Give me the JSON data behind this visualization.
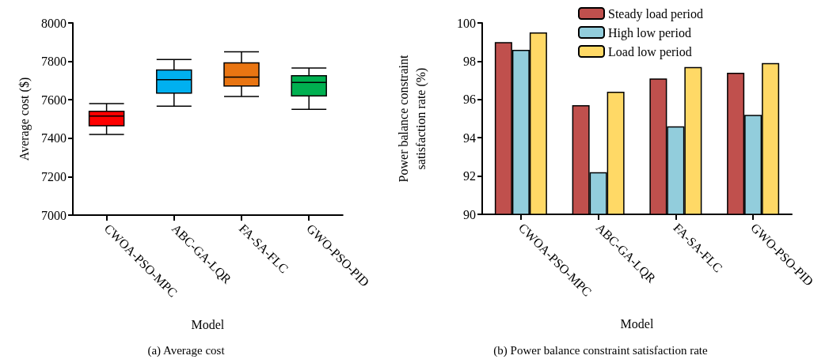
{
  "chart_data": [
    {
      "type": "box",
      "title": "(a) Average cost",
      "xlabel": "Model",
      "ylabel": "Average cost ($)",
      "categories": [
        "CWOA-PSO-MPC",
        "ABC-GA-LQR",
        "FA-SA-FLC",
        "GWO-PSO-PID"
      ],
      "boxes": [
        {
          "low": 7420,
          "q1": 7465,
          "median": 7515,
          "q3": 7540,
          "high": 7580
        },
        {
          "low": 7567,
          "q1": 7635,
          "median": 7705,
          "q3": 7755,
          "high": 7810
        },
        {
          "low": 7617,
          "q1": 7672,
          "median": 7718,
          "q3": 7792,
          "high": 7850
        },
        {
          "low": 7550,
          "q1": 7620,
          "median": 7690,
          "q3": 7725,
          "high": 7765
        }
      ],
      "colors": [
        "#ff0000",
        "#00b0f0",
        "#e97512",
        "#00b050"
      ],
      "ylim": [
        7000,
        8000
      ],
      "yticks": [
        7000,
        7200,
        7400,
        7600,
        7800,
        8000
      ],
      "grid": false,
      "legend": false
    },
    {
      "type": "bar",
      "title": "(b) Power balance constraint satisfaction rate",
      "xlabel": "Model",
      "ylabel": "Power balance constraint satisfaction rate (%)",
      "categories": [
        "CWOA-PSO-MPC",
        "ABC-GA-LQR",
        "FA-SA-FLC",
        "GWO-PSO-PID"
      ],
      "series": [
        {
          "name": "Steady load period",
          "color": "#c0504d",
          "values": [
            99.0,
            95.7,
            97.1,
            97.4
          ]
        },
        {
          "name": "High low period",
          "color": "#92cddc",
          "values": [
            98.6,
            92.2,
            94.6,
            95.2
          ]
        },
        {
          "name": "Load low period",
          "color": "#ffd966",
          "values": [
            99.5,
            96.4,
            97.7,
            97.9
          ]
        }
      ],
      "ylim": [
        90,
        100
      ],
      "yticks": [
        90,
        92,
        94,
        96,
        98,
        100
      ],
      "grid": false,
      "legend": "top"
    }
  ]
}
